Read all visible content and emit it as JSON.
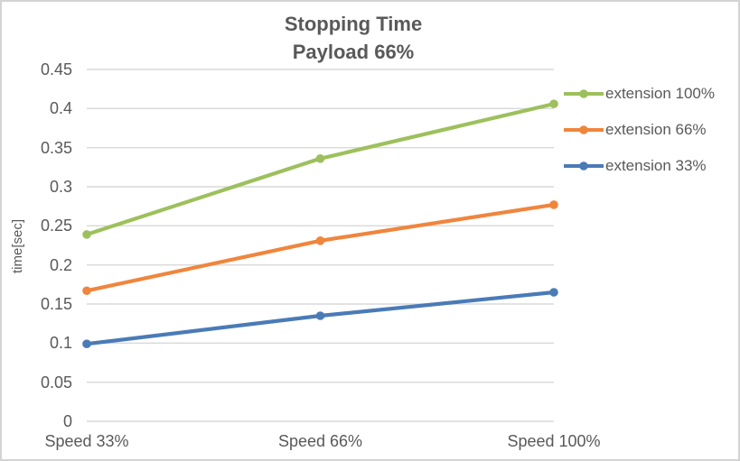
{
  "window": {
    "background_color": "#ffffff",
    "border_color": "#d4d4d4",
    "text_color": "#595959"
  },
  "chart_data": {
    "type": "line",
    "title": "Stopping Time",
    "subtitle": "Payload 66%",
    "categories": [
      "Speed 33%",
      "Speed 66%",
      "Speed 100%"
    ],
    "series": [
      {
        "name": "extension 100%",
        "color": "#9DC05C",
        "values": [
          0.239,
          0.336,
          0.406
        ]
      },
      {
        "name": "extension 66%",
        "color": "#F0853D",
        "values": [
          0.167,
          0.231,
          0.277
        ]
      },
      {
        "name": "extension 33%",
        "color": "#4A7BB7",
        "values": [
          0.099,
          0.135,
          0.165
        ]
      }
    ],
    "xlabel": "",
    "ylabel": "time[sec]",
    "ylim": [
      0,
      0.45
    ],
    "yticks": [
      0,
      0.05,
      0.1,
      0.15,
      0.2,
      0.25,
      0.3,
      0.35,
      0.4,
      0.45
    ],
    "ytick_labels": [
      "0",
      "0.05",
      "0.1",
      "0.15",
      "0.2",
      "0.25",
      "0.3",
      "0.35",
      "0.4",
      "0.45"
    ],
    "grid": true,
    "gridline_color": "#D9D9D9",
    "legend_position": "right",
    "marker": "circle"
  }
}
